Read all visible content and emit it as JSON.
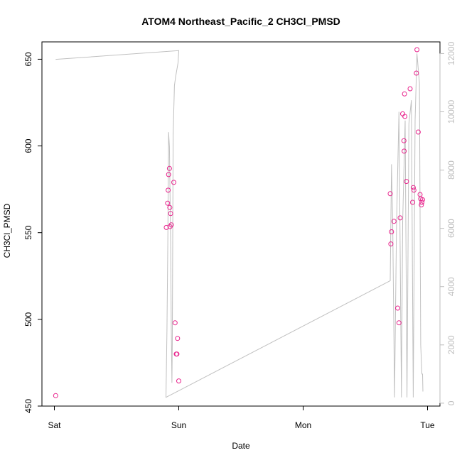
{
  "chart_data": {
    "type": "scatter",
    "title": "ATOM4 Northeast_Pacific_2 CH3Cl_PMSD",
    "xlabel": "Date",
    "ylabel": "CH3Cl_PMSD",
    "x_ticks": [
      {
        "label": "Sat",
        "value": 0
      },
      {
        "label": "Sun",
        "value": 1
      },
      {
        "label": "Mon",
        "value": 2
      },
      {
        "label": "Tue",
        "value": 3
      }
    ],
    "xlim": [
      -0.1,
      3.1
    ],
    "ylim": [
      450,
      660
    ],
    "y_ticks": [
      450,
      500,
      550,
      600,
      650
    ],
    "y2lim": [
      -100,
      12400
    ],
    "y2_ticks": [
      0,
      2000,
      4000,
      6000,
      8000,
      10000,
      12000
    ],
    "grid": false,
    "colors": {
      "points": "#e8238c",
      "line": "#c0c0c0",
      "axis": "#000000",
      "right_axis": "#bdbdbd"
    },
    "series": [
      {
        "role": "points",
        "axis": "left",
        "points": [
          [
            0.01,
            456
          ],
          [
            0.9,
            553
          ],
          [
            0.91,
            567
          ],
          [
            0.915,
            574.5
          ],
          [
            0.918,
            583.5
          ],
          [
            0.925,
            587
          ],
          [
            0.928,
            564.5
          ],
          [
            0.93,
            553.5
          ],
          [
            0.935,
            561
          ],
          [
            0.94,
            554.5
          ],
          [
            0.96,
            579
          ],
          [
            0.97,
            498
          ],
          [
            0.98,
            480
          ],
          [
            0.985,
            480
          ],
          [
            0.99,
            489
          ],
          [
            1.0,
            464.5
          ],
          [
            2.7,
            572.5
          ],
          [
            2.705,
            543.5
          ],
          [
            2.71,
            550.5
          ],
          [
            2.73,
            556.5
          ],
          [
            2.76,
            506.5
          ],
          [
            2.77,
            498
          ],
          [
            2.78,
            558.5
          ],
          [
            2.8,
            618.5
          ],
          [
            2.81,
            603
          ],
          [
            2.812,
            597
          ],
          [
            2.815,
            630
          ],
          [
            2.818,
            617
          ],
          [
            2.83,
            579.5
          ],
          [
            2.86,
            633
          ],
          [
            2.88,
            567.5
          ],
          [
            2.885,
            576
          ],
          [
            2.89,
            574.5
          ],
          [
            2.91,
            642
          ],
          [
            2.915,
            655.5
          ],
          [
            2.925,
            608
          ],
          [
            2.94,
            572
          ],
          [
            2.945,
            569.5
          ],
          [
            2.95,
            566
          ],
          [
            2.955,
            567.5
          ],
          [
            2.96,
            569
          ]
        ]
      },
      {
        "role": "line",
        "axis": "right",
        "points": [
          [
            0.01,
            11800
          ],
          [
            1.0,
            12100
          ],
          [
            0.995,
            11700
          ],
          [
            0.975,
            11200
          ],
          [
            0.965,
            10900
          ],
          [
            0.955,
            9200
          ],
          [
            0.948,
            2000
          ],
          [
            0.945,
            700
          ],
          [
            0.94,
            2500
          ],
          [
            0.935,
            5500
          ],
          [
            0.925,
            8800
          ],
          [
            0.918,
            9300
          ],
          [
            0.912,
            5500
          ],
          [
            0.905,
            2500
          ],
          [
            0.9,
            1000
          ],
          [
            0.897,
            200
          ],
          [
            2.7,
            4200
          ],
          [
            2.71,
            8200
          ],
          [
            2.72,
            6200
          ],
          [
            2.735,
            200
          ],
          [
            2.75,
            6000
          ],
          [
            2.77,
            10000
          ],
          [
            2.79,
            200
          ],
          [
            2.8,
            6200
          ],
          [
            2.82,
            9700
          ],
          [
            2.835,
            200
          ],
          [
            2.85,
            9600
          ],
          [
            2.87,
            10400
          ],
          [
            2.885,
            200
          ],
          [
            2.9,
            9700
          ],
          [
            2.915,
            12000
          ],
          [
            2.935,
            11000
          ],
          [
            2.945,
            2000
          ],
          [
            2.955,
            1000
          ],
          [
            2.96,
            1000
          ],
          [
            2.963,
            400
          ]
        ]
      }
    ]
  }
}
